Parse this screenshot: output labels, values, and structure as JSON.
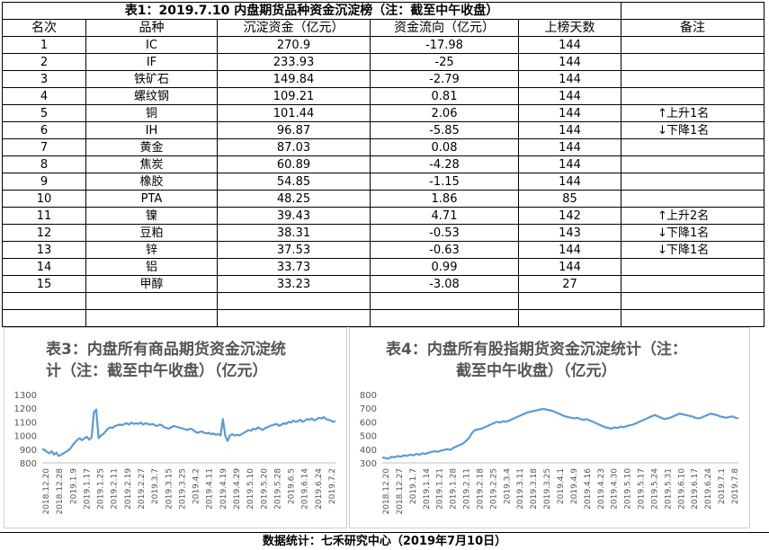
{
  "title": "表1：2019.7.10 内盘期货品种资金沉淀榜（注：截至中午收盘）",
  "headers": [
    "名次",
    "品种",
    "沉淀资金（亿元）",
    "资金流向（亿元）",
    "上榜天数",
    "备注"
  ],
  "rows": [
    {
      "rank": "1",
      "name": "IC",
      "fund": "270.9",
      "flow": "-17.98",
      "days": "144",
      "note": "",
      "arrow": ""
    },
    {
      "rank": "2",
      "name": "IF",
      "fund": "233.93",
      "flow": "-25",
      "days": "144",
      "note": "",
      "arrow": ""
    },
    {
      "rank": "3",
      "name": "铁矿石",
      "fund": "149.84",
      "flow": "-2.79",
      "days": "144",
      "note": "",
      "arrow": ""
    },
    {
      "rank": "4",
      "name": "螺纹钢",
      "fund": "109.21",
      "flow": "0.81",
      "days": "144",
      "note": "",
      "arrow": ""
    },
    {
      "rank": "5",
      "name": "铜",
      "fund": "101.44",
      "flow": "2.06",
      "days": "144",
      "note": "上升1名",
      "arrow": "↑"
    },
    {
      "rank": "6",
      "name": "IH",
      "fund": "96.87",
      "flow": "-5.85",
      "days": "144",
      "note": "下降1名",
      "arrow": "↓"
    },
    {
      "rank": "7",
      "name": "黄金",
      "fund": "87.03",
      "flow": "0.08",
      "days": "144",
      "note": "",
      "arrow": ""
    },
    {
      "rank": "8",
      "name": "焦炭",
      "fund": "60.89",
      "flow": "-4.28",
      "days": "144",
      "note": "",
      "arrow": ""
    },
    {
      "rank": "9",
      "name": "橡胶",
      "fund": "54.85",
      "flow": "-1.15",
      "days": "144",
      "note": "",
      "arrow": ""
    },
    {
      "rank": "10",
      "name": "PTA",
      "fund": "48.25",
      "flow": "1.86",
      "days": "85",
      "note": "",
      "arrow": ""
    },
    {
      "rank": "11",
      "name": "镍",
      "fund": "39.43",
      "flow": "4.71",
      "days": "142",
      "note": "上升2名",
      "arrow": "↑"
    },
    {
      "rank": "12",
      "name": "豆粕",
      "fund": "38.31",
      "flow": "-0.53",
      "days": "143",
      "note": "下降1名",
      "arrow": "↓"
    },
    {
      "rank": "13",
      "name": "锌",
      "fund": "37.53",
      "flow": "-0.63",
      "days": "144",
      "note": "下降1名",
      "arrow": "↓"
    },
    {
      "rank": "14",
      "name": "铝",
      "fund": "33.73",
      "flow": "0.99",
      "days": "144",
      "note": "",
      "arrow": ""
    },
    {
      "rank": "15",
      "name": "甲醇",
      "fund": "33.23",
      "flow": "-3.08",
      "days": "27",
      "note": "",
      "arrow": ""
    }
  ],
  "footer": "数据统计：七禾研究中心（2019年7月10日）",
  "charts": {
    "left_title_1": "表3：内盘所有商品期货资金沉淀统",
    "left_title_2": "计（注：截至中午收盘）（亿元）",
    "right_title_1": "表4：内盘所有股指期货资金沉淀统计（注：",
    "right_title_2": "截至中午收盘）（亿元）"
  },
  "chart_data": [
    {
      "type": "line",
      "title": "表3：内盘所有商品期货资金沉淀统计（注：截至中午收盘）（亿元）",
      "ylim": [
        800,
        1300
      ],
      "yticks": [
        800,
        900,
        1000,
        1100,
        1200,
        1300
      ],
      "xticks": [
        "2018.12.20",
        "2018.12.28",
        "2019.1.9",
        "2019.1.17",
        "2019.1.25",
        "2019.2.11",
        "2019.2.19",
        "2019.2.27",
        "2019.3.7",
        "2019.3.15",
        "2019.3.25",
        "2019.4.2",
        "2019.4.11",
        "2019.4.19",
        "2019.4.29",
        "2019.5.10",
        "2019.5.20",
        "2019.5.28",
        "2019.6.5",
        "2019.6.14",
        "2019.6.24",
        "2019.7.2"
      ],
      "color": "#5b9bd5",
      "values": [
        900,
        895,
        880,
        870,
        885,
        860,
        875,
        850,
        860,
        870,
        880,
        890,
        905,
        930,
        950,
        970,
        980,
        965,
        980,
        990,
        970,
        985,
        1170,
        1190,
        980,
        1000,
        1010,
        1030,
        1050,
        1060,
        1055,
        1070,
        1075,
        1080,
        1075,
        1085,
        1090,
        1080,
        1095,
        1085,
        1090,
        1085,
        1095,
        1080,
        1090,
        1085,
        1080,
        1085,
        1075,
        1070,
        1080,
        1075,
        1060,
        1055,
        1050,
        1060,
        1070,
        1065,
        1060,
        1055,
        1050,
        1045,
        1040,
        1050,
        1045,
        1030,
        1020,
        1025,
        1030,
        1020,
        1015,
        1020,
        1010,
        1015,
        1005,
        1010,
        1000,
        1120,
        1000,
        960,
        1000,
        1010,
        1000,
        1005,
        1000,
        1010,
        1020,
        1030,
        1040,
        1035,
        1050,
        1045,
        1060,
        1050,
        1040,
        1055,
        1060,
        1070,
        1075,
        1080,
        1085,
        1070,
        1080,
        1090,
        1085,
        1100,
        1095,
        1110,
        1100,
        1105,
        1115,
        1100,
        1110,
        1120,
        1115,
        1125,
        1110,
        1120,
        1130,
        1125,
        1135,
        1120,
        1115,
        1110,
        1100,
        1105
      ]
    },
    {
      "type": "line",
      "title": "表4：内盘所有股指期货资金沉淀统计（注：截至中午收盘）（亿元）",
      "ylim": [
        300,
        800
      ],
      "yticks": [
        300,
        400,
        500,
        600,
        700,
        800
      ],
      "xticks": [
        "2018.12.20",
        "2018.12.27",
        "2019.1.7",
        "2019.1.14",
        "2019.1.21",
        "2019.1.28",
        "2019.2.11",
        "2019.2.18",
        "2019.2.25",
        "2019.3.4",
        "2019.3.11",
        "2019.3.18",
        "2019.3.25",
        "2019.4.1",
        "2019.4.9",
        "2019.4.16",
        "2019.4.23",
        "2019.4.30",
        "2019.5.10",
        "2019.5.17",
        "2019.5.24",
        "2019.5.31",
        "2019.6.10",
        "2019.6.17",
        "2019.6.24",
        "2019.7.1",
        "2019.7.8"
      ],
      "color": "#5b9bd5",
      "values": [
        340,
        335,
        330,
        345,
        340,
        350,
        345,
        355,
        350,
        360,
        355,
        365,
        360,
        370,
        365,
        375,
        380,
        385,
        380,
        390,
        395,
        400,
        395,
        410,
        420,
        430,
        440,
        460,
        480,
        520,
        540,
        545,
        550,
        560,
        570,
        580,
        590,
        600,
        595,
        605,
        600,
        610,
        620,
        630,
        640,
        650,
        660,
        670,
        675,
        680,
        685,
        690,
        695,
        690,
        685,
        680,
        670,
        660,
        650,
        640,
        635,
        630,
        625,
        630,
        620,
        615,
        620,
        610,
        600,
        590,
        580,
        570,
        560,
        555,
        550,
        560,
        555,
        565,
        560,
        570,
        575,
        580,
        590,
        600,
        610,
        620,
        630,
        640,
        650,
        640,
        630,
        620,
        625,
        630,
        640,
        650,
        660,
        655,
        650,
        645,
        640,
        630,
        625,
        630,
        640,
        650,
        660,
        655,
        650,
        640,
        635,
        630,
        635,
        640,
        630,
        625
      ]
    }
  ]
}
